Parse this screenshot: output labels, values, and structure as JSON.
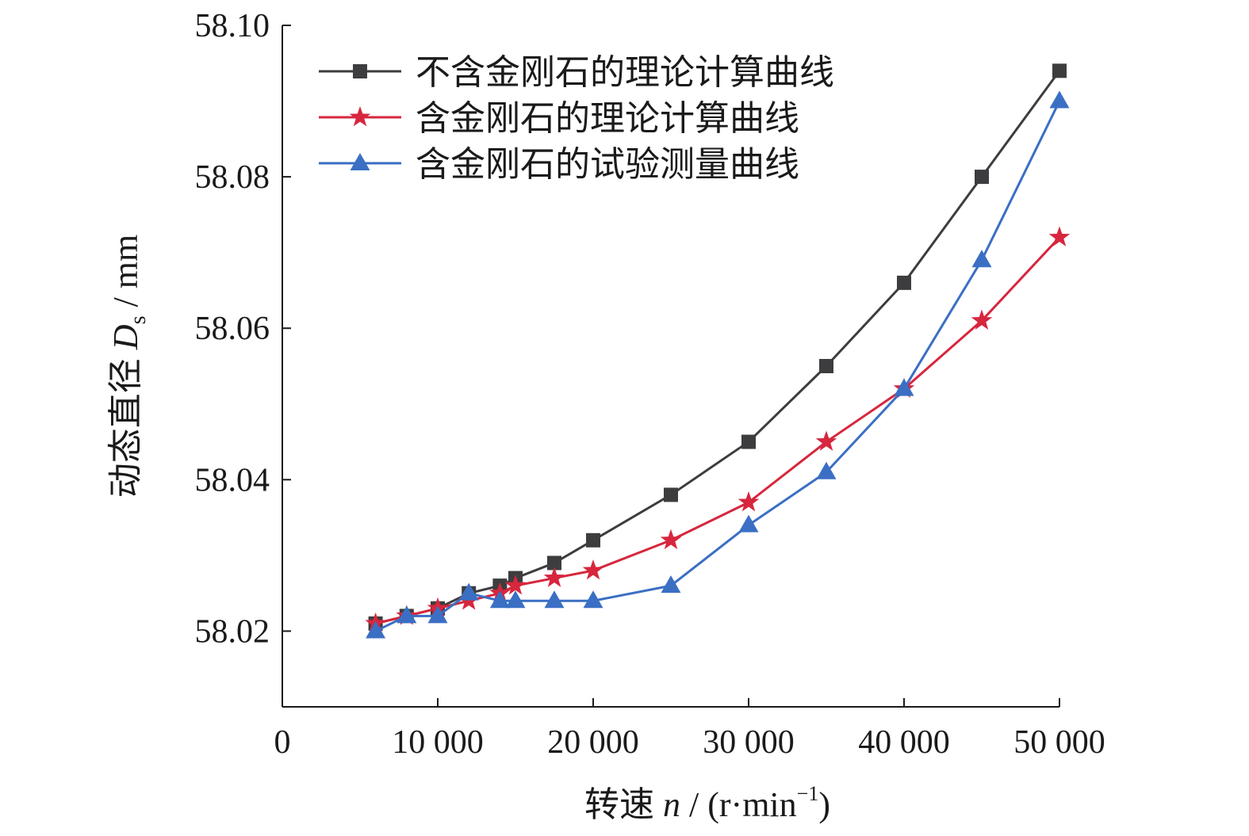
{
  "chart_data": {
    "type": "line",
    "xlabel": {
      "prefix": "转速 ",
      "var": "n",
      "unit_open": " / (r·min",
      "unit_sup": "−1",
      "unit_close": ")"
    },
    "ylabel": {
      "prefix": "动态直径 ",
      "var": "D",
      "sub": "s",
      "unit": " / mm"
    },
    "xlim": [
      0,
      50000
    ],
    "ylim": [
      58.01,
      58.1
    ],
    "x_ticks": [
      0,
      10000,
      20000,
      30000,
      40000,
      50000
    ],
    "x_tick_labels": [
      "0",
      "10 000",
      "20 000",
      "30 000",
      "40 000",
      "50 000"
    ],
    "y_ticks": [
      58.02,
      58.04,
      58.06,
      58.08,
      58.1
    ],
    "y_tick_labels": [
      "58.02",
      "58.04",
      "58.06",
      "58.08",
      "58.10"
    ],
    "grid": false,
    "legend_position": "top-left",
    "series": [
      {
        "name": "不含金刚石的理论计算曲线",
        "color": "#3d3d3f",
        "marker": "square",
        "x": [
          6000,
          8000,
          10000,
          12000,
          14000,
          15000,
          17500,
          20000,
          25000,
          30000,
          35000,
          40000,
          45000,
          50000
        ],
        "y": [
          58.021,
          58.022,
          58.023,
          58.025,
          58.026,
          58.027,
          58.029,
          58.032,
          58.038,
          58.045,
          58.055,
          58.066,
          58.08,
          58.094
        ]
      },
      {
        "name": "含金刚石的理论计算曲线",
        "color": "#d7263d",
        "marker": "star",
        "x": [
          6000,
          8000,
          10000,
          12000,
          14000,
          15000,
          17500,
          20000,
          25000,
          30000,
          35000,
          40000,
          45000,
          50000
        ],
        "y": [
          58.021,
          58.022,
          58.023,
          58.024,
          58.025,
          58.026,
          58.027,
          58.028,
          58.032,
          58.037,
          58.045,
          58.052,
          58.061,
          58.072
        ]
      },
      {
        "name": "含金刚石的试验测量曲线",
        "color": "#3a6fc4",
        "marker": "triangle",
        "x": [
          6000,
          8000,
          10000,
          12000,
          14000,
          15000,
          17500,
          20000,
          25000,
          30000,
          35000,
          40000,
          45000,
          50000
        ],
        "y": [
          58.02,
          58.022,
          58.022,
          58.025,
          58.024,
          58.024,
          58.024,
          58.024,
          58.026,
          58.034,
          58.041,
          58.052,
          58.069,
          58.09
        ]
      }
    ]
  }
}
